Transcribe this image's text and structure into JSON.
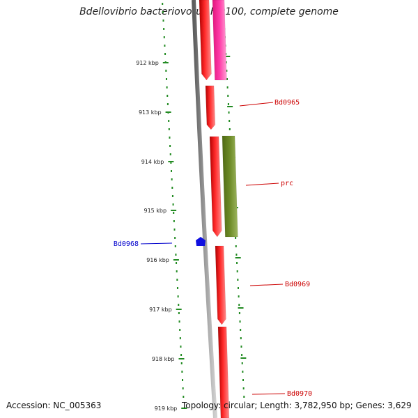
{
  "title": "Bdellovibrio bacteriovorus HD100, complete genome",
  "footer": {
    "accession": "Accession: NC_005363",
    "topology": "Topology: circular; Length: 3,782,950 bp; Genes: 3,629"
  },
  "scale_ticks": [
    "912 kbp",
    "913 kbp",
    "914 kbp",
    "915 kbp",
    "916 kbp",
    "917 kbp",
    "918 kbp",
    "919 kbp"
  ],
  "genes": [
    {
      "label": "",
      "color": "#ff1a1a",
      "track": "inner",
      "strand": "forward"
    },
    {
      "label": "",
      "color": "#ff3ca8",
      "track": "outer",
      "strand": "forward"
    },
    {
      "label": "Bd0965",
      "color": "#ff1a1a",
      "track": "inner",
      "strand": "forward"
    },
    {
      "label": "",
      "color": "#ff1a1a",
      "track": "inner",
      "strand": "forward"
    },
    {
      "label": "prc",
      "color": "#6e8c28",
      "track": "outer",
      "strand": "forward"
    },
    {
      "label": "Bd0968",
      "color": "#1010e0",
      "track": "marker",
      "strand": "reverse"
    },
    {
      "label": "Bd0969",
      "color": "#ff1a1a",
      "track": "inner",
      "strand": "forward"
    },
    {
      "label": "Bd0970",
      "color": "#ff1a1a",
      "track": "inner",
      "strand": "forward"
    }
  ],
  "colors": {
    "backbone": "#8c8c8c",
    "tick_mark": "#228b22",
    "label_red": "#cc0000",
    "label_blue": "#0000cc"
  }
}
